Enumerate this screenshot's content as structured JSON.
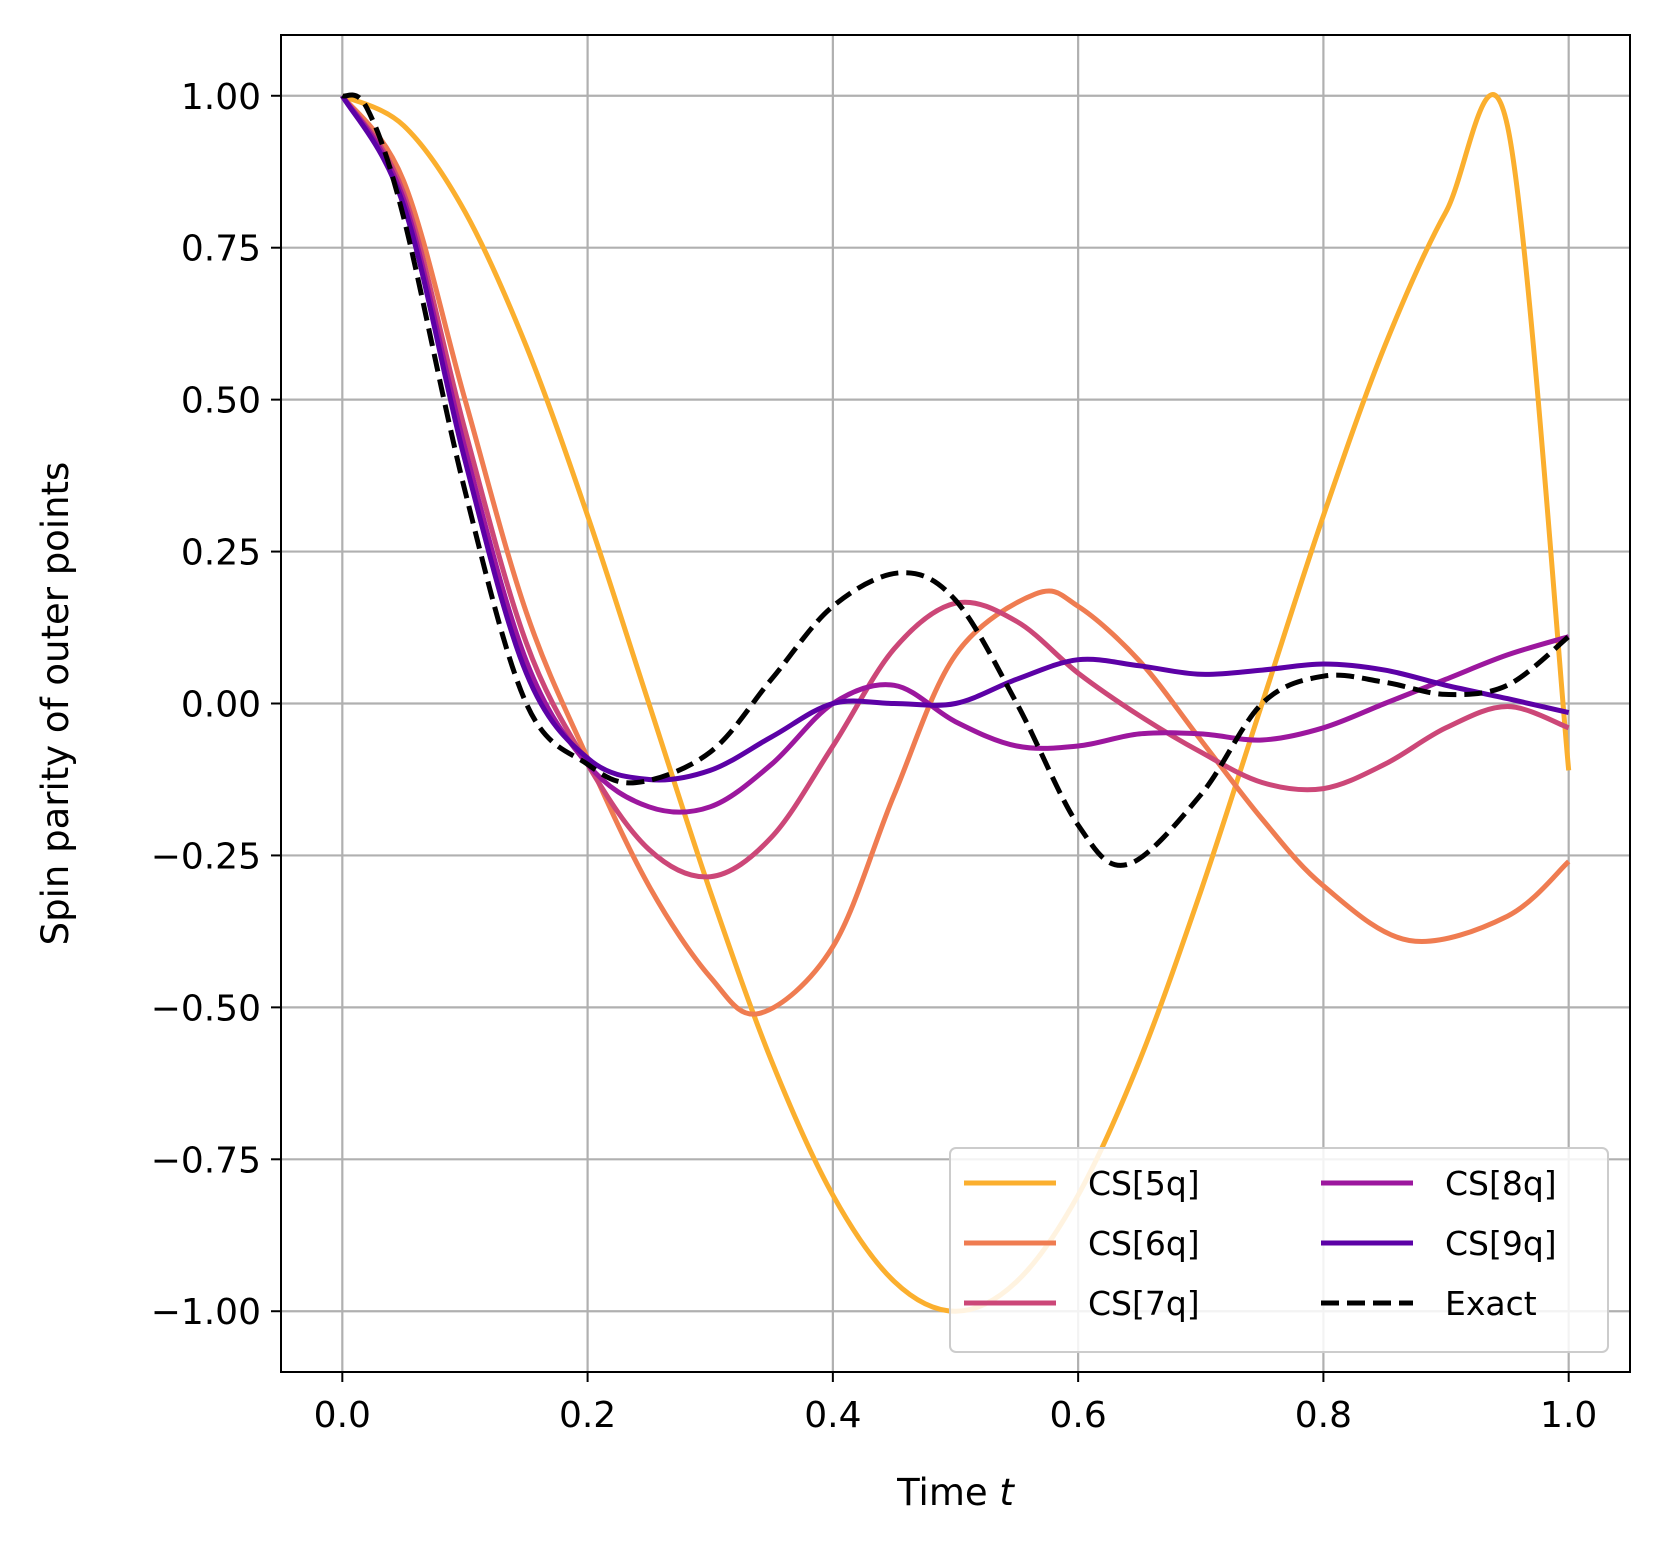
{
  "chart_data": {
    "type": "line",
    "title": "",
    "xlabel": "Time",
    "xlabel_var": "t",
    "ylabel": "Spin parity of outer points",
    "xlim": [
      -0.05,
      1.05
    ],
    "ylim": [
      -1.1,
      1.1
    ],
    "xticks": [
      0.0,
      0.2,
      0.4,
      0.6,
      0.8,
      1.0
    ],
    "xtick_labels": [
      "0.0",
      "0.2",
      "0.4",
      "0.6",
      "0.8",
      "1.0"
    ],
    "yticks": [
      1.0,
      0.75,
      0.5,
      0.25,
      0.0,
      -0.25,
      -0.5,
      -0.75,
      -1.0
    ],
    "ytick_labels": [
      "1.00",
      "0.75",
      "0.50",
      "0.25",
      "0.00",
      "−0.25",
      "−0.50",
      "−0.75",
      "−1.00"
    ],
    "grid": true,
    "legend_position": "lower-right",
    "legend_columns": 2,
    "series": [
      {
        "name": "CS[5q]",
        "color": "#fbaf2e",
        "dash": false,
        "x": [
          0.0,
          0.05,
          0.1,
          0.15,
          0.2,
          0.25,
          0.3,
          0.35,
          0.4,
          0.45,
          0.5,
          0.55,
          0.6,
          0.65,
          0.7,
          0.75,
          0.8,
          0.85,
          0.9,
          0.95,
          1.0
        ],
        "y": [
          1.0,
          0.951,
          0.809,
          0.588,
          0.309,
          0.0,
          -0.309,
          -0.588,
          -0.809,
          -0.951,
          -1.0,
          -0.951,
          -0.809,
          -0.588,
          -0.309,
          0.0,
          0.309,
          0.588,
          0.809,
          0.951,
          -0.11
        ]
      },
      {
        "name": "CS[6q]",
        "color": "#ef7c51",
        "dash": false,
        "x": [
          0.0,
          0.05,
          0.1,
          0.15,
          0.2,
          0.25,
          0.3,
          0.34,
          0.4,
          0.45,
          0.5,
          0.565,
          0.6,
          0.65,
          0.7,
          0.75,
          0.8,
          0.87,
          0.95,
          1.0
        ],
        "y": [
          1.0,
          0.86,
          0.5,
          0.15,
          -0.09,
          -0.3,
          -0.45,
          -0.51,
          -0.4,
          -0.15,
          0.08,
          0.18,
          0.16,
          0.07,
          -0.06,
          -0.19,
          -0.3,
          -0.39,
          -0.35,
          -0.26
        ]
      },
      {
        "name": "CS[7q]",
        "color": "#cc4778",
        "dash": false,
        "x": [
          0.0,
          0.05,
          0.1,
          0.15,
          0.2,
          0.25,
          0.3,
          0.35,
          0.4,
          0.45,
          0.5,
          0.55,
          0.6,
          0.65,
          0.7,
          0.75,
          0.8,
          0.85,
          0.9,
          0.95,
          1.0
        ],
        "y": [
          1.0,
          0.84,
          0.45,
          0.1,
          -0.1,
          -0.24,
          -0.285,
          -0.22,
          -0.07,
          0.09,
          0.165,
          0.135,
          0.05,
          -0.02,
          -0.08,
          -0.13,
          -0.14,
          -0.1,
          -0.04,
          -0.005,
          -0.04
        ]
      },
      {
        "name": "CS[8q]",
        "color": "#9c179e",
        "dash": false,
        "x": [
          0.0,
          0.05,
          0.1,
          0.15,
          0.2,
          0.25,
          0.3,
          0.35,
          0.4,
          0.45,
          0.5,
          0.55,
          0.6,
          0.65,
          0.7,
          0.75,
          0.8,
          0.85,
          0.9,
          0.95,
          1.0
        ],
        "y": [
          1.0,
          0.83,
          0.42,
          0.07,
          -0.1,
          -0.17,
          -0.17,
          -0.1,
          0.0,
          0.03,
          -0.03,
          -0.07,
          -0.07,
          -0.05,
          -0.05,
          -0.06,
          -0.04,
          0.0,
          0.04,
          0.08,
          0.11
        ]
      },
      {
        "name": "CS[9q]",
        "color": "#5c01a6",
        "dash": false,
        "x": [
          0.0,
          0.05,
          0.1,
          0.15,
          0.2,
          0.25,
          0.3,
          0.35,
          0.4,
          0.45,
          0.5,
          0.55,
          0.6,
          0.65,
          0.7,
          0.75,
          0.8,
          0.85,
          0.9,
          0.95,
          1.0
        ],
        "y": [
          1.0,
          0.82,
          0.4,
          0.05,
          -0.09,
          -0.125,
          -0.11,
          -0.055,
          0.0,
          0.0,
          0.0,
          0.04,
          0.072,
          0.062,
          0.048,
          0.055,
          0.065,
          0.055,
          0.03,
          0.008,
          -0.015
        ]
      },
      {
        "name": "Exact",
        "color": "#000000",
        "dash": true,
        "x": [
          0.0,
          0.02,
          0.05,
          0.1,
          0.15,
          0.2,
          0.24,
          0.3,
          0.35,
          0.4,
          0.455,
          0.5,
          0.55,
          0.6,
          0.64,
          0.7,
          0.75,
          0.8,
          0.85,
          0.9,
          0.95,
          1.0
        ],
        "y": [
          1.0,
          0.98,
          0.8,
          0.35,
          0.0,
          -0.1,
          -0.13,
          -0.08,
          0.04,
          0.16,
          0.215,
          0.17,
          0.0,
          -0.2,
          -0.265,
          -0.15,
          0.0,
          0.045,
          0.035,
          0.015,
          0.03,
          0.11
        ]
      }
    ]
  }
}
